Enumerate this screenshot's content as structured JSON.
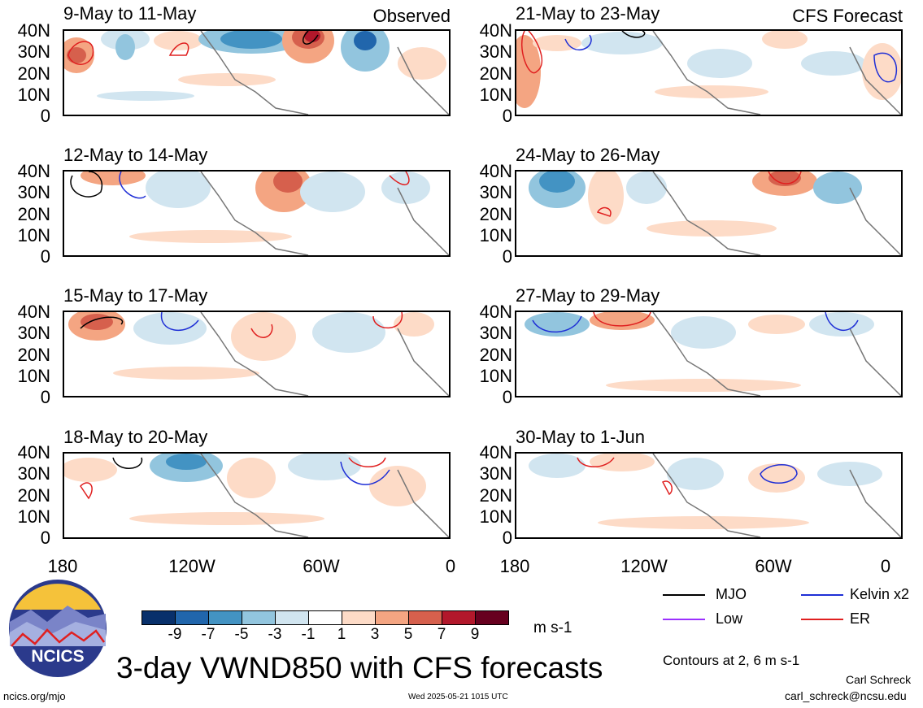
{
  "panels": [
    {
      "title": "9-May to 11-May",
      "tag": "Observed"
    },
    {
      "title": "21-May to 23-May",
      "tag": "CFS Forecast"
    },
    {
      "title": "12-May to 14-May",
      "tag": ""
    },
    {
      "title": "24-May to 26-May",
      "tag": ""
    },
    {
      "title": "15-May to 17-May",
      "tag": ""
    },
    {
      "title": "27-May to 29-May",
      "tag": ""
    },
    {
      "title": "18-May to 20-May",
      "tag": ""
    },
    {
      "title": "30-May to 1-Jun",
      "tag": ""
    }
  ],
  "y_ticks": [
    "40N",
    "30N",
    "20N",
    "10N",
    "0"
  ],
  "x_ticks": [
    "180",
    "120W",
    "60W",
    "0"
  ],
  "legend": {
    "mjo": "MJO",
    "kelvin": "Kelvin x2",
    "low": "Low",
    "er": "ER",
    "colors": {
      "mjo": "#000000",
      "kelvin": "#1f2fd6",
      "low": "#9b30ff",
      "er": "#e02020"
    }
  },
  "colorbar": {
    "labels": [
      "-9",
      "-7",
      "-5",
      "-3",
      "-1",
      "1",
      "3",
      "5",
      "7",
      "9"
    ],
    "colors": [
      "#08306b",
      "#2166ac",
      "#4393c3",
      "#92c5de",
      "#d1e5f0",
      "#ffffff",
      "#fddbc7",
      "#f4a582",
      "#d6604d",
      "#b2182b",
      "#67001f"
    ],
    "units": "m s-1"
  },
  "contours_note": "Contours at 2, 6 m s-1",
  "title": "3-day VWND850 with CFS forecasts",
  "logo_text": "NCICS",
  "footer": {
    "url": "ncics.org/mjo",
    "timestamp": "Wed 2025-05-21 1015 UTC",
    "author": "Carl Schreck",
    "email": "carl_schreck@ncsu.edu"
  }
}
